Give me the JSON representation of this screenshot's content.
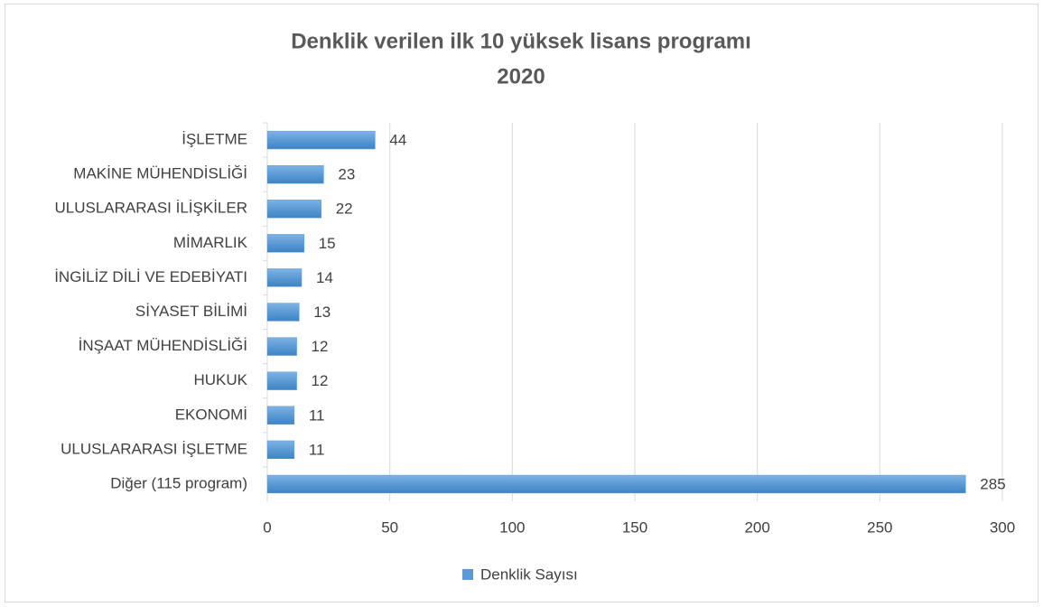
{
  "chart_data": {
    "type": "barh",
    "title": [
      "Denklik verilen ilk 10 yüksek lisans programı",
      "2020"
    ],
    "categories": [
      "İŞLETME",
      "MAKİNE MÜHENDİSLİĞİ",
      "ULUSLARARASI İLİŞKİLER",
      "MİMARLIK",
      "İNGİLİZ DİLİ VE EDEBİYATI",
      "SİYASET BİLİMİ",
      "İNŞAAT MÜHENDİSLİĞİ",
      "HUKUK",
      "EKONOMİ",
      "ULUSLARARASI İŞLETME",
      "Diğer (115 program)"
    ],
    "series": [
      {
        "name": "Denklik Sayısı",
        "color": "#5b9bd5",
        "values": [
          44,
          23,
          22,
          15,
          14,
          13,
          12,
          12,
          11,
          11,
          285
        ]
      }
    ],
    "xlim": [
      0,
      300
    ],
    "xticks": [
      0,
      50,
      100,
      150,
      200,
      250,
      300
    ],
    "grid": true,
    "legend": "bottom"
  }
}
